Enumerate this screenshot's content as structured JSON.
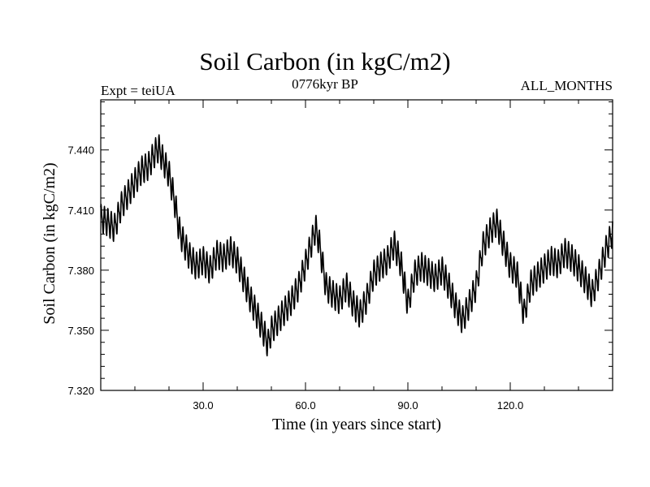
{
  "chart_data": {
    "type": "line",
    "title": "Soil Carbon (in kgC/m2)",
    "subtitle": "0776kyr BP",
    "left_label": "Expt = teiUA",
    "right_label": "ALL_MONTHS",
    "xlabel": "Time (in years since start)",
    "ylabel": "Soil Carbon (in kgC/m2)",
    "xlim": [
      0,
      150
    ],
    "ylim": [
      7.32,
      7.465
    ],
    "x_ticks": [
      30.0,
      60.0,
      90.0,
      120.0
    ],
    "x_tick_labels": [
      "30.0",
      "60.0",
      "90.0",
      "120.0"
    ],
    "y_ticks": [
      7.32,
      7.35,
      7.38,
      7.41,
      7.44
    ],
    "y_tick_labels": [
      "7.320",
      "7.350",
      "7.380",
      "7.410",
      "7.440"
    ],
    "seasonal_amplitude": 0.006,
    "series": [
      {
        "name": "Soil Carbon",
        "x": [
          0,
          2,
          4,
          6,
          8,
          10,
          12,
          14,
          16,
          17,
          18,
          20,
          21,
          22,
          23,
          24,
          26,
          28,
          30,
          32,
          34,
          36,
          38,
          40,
          42,
          44,
          46,
          48,
          49,
          50,
          52,
          54,
          56,
          58,
          60,
          62,
          63,
          64,
          66,
          68,
          70,
          72,
          74,
          76,
          78,
          80,
          82,
          84,
          86,
          88,
          90,
          92,
          94,
          96,
          98,
          100,
          102,
          104,
          106,
          108,
          110,
          112,
          114,
          116,
          118,
          120,
          122,
          124,
          126,
          128,
          130,
          132,
          134,
          136,
          138,
          140,
          142,
          144,
          146,
          148,
          150
        ],
        "values": [
          7.406,
          7.404,
          7.401,
          7.412,
          7.418,
          7.424,
          7.43,
          7.432,
          7.439,
          7.441,
          7.436,
          7.428,
          7.42,
          7.411,
          7.4,
          7.395,
          7.387,
          7.382,
          7.385,
          7.38,
          7.388,
          7.386,
          7.39,
          7.385,
          7.375,
          7.365,
          7.357,
          7.348,
          7.343,
          7.35,
          7.355,
          7.36,
          7.365,
          7.372,
          7.383,
          7.395,
          7.401,
          7.394,
          7.372,
          7.368,
          7.365,
          7.372,
          7.363,
          7.358,
          7.366,
          7.378,
          7.382,
          7.385,
          7.393,
          7.383,
          7.363,
          7.378,
          7.382,
          7.379,
          7.376,
          7.38,
          7.372,
          7.362,
          7.355,
          7.363,
          7.372,
          7.392,
          7.399,
          7.404,
          7.393,
          7.382,
          7.378,
          7.358,
          7.373,
          7.377,
          7.381,
          7.385,
          7.383,
          7.389,
          7.386,
          7.381,
          7.375,
          7.368,
          7.378,
          7.39,
          7.399
        ]
      }
    ]
  }
}
